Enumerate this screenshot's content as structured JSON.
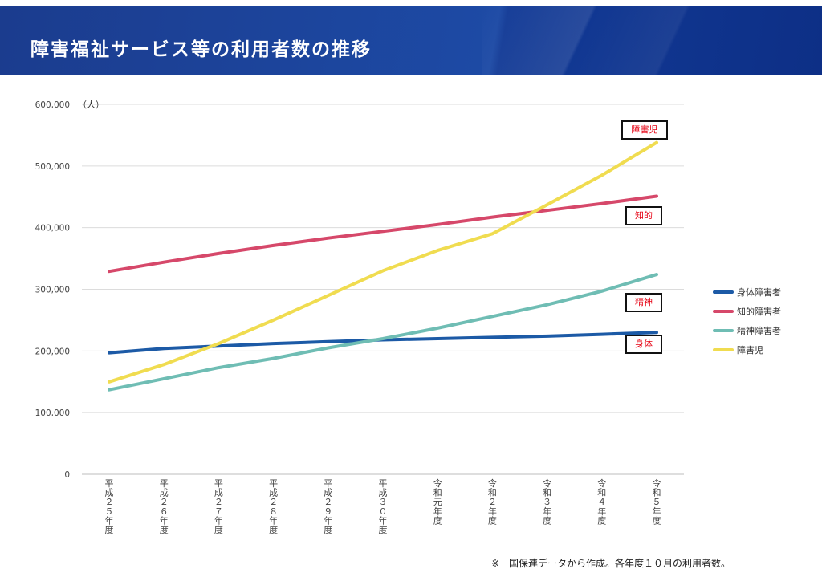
{
  "header": {
    "title": "障害福祉サービス等の利用者数の推移"
  },
  "footnote": "※　国保連データから作成。各年度１０月の利用者数。",
  "chart_data": {
    "type": "line",
    "unit_label": "（人）",
    "categories": [
      "平成25年度",
      "平成26年度",
      "平成27年度",
      "平成28年度",
      "平成29年度",
      "平成30年度",
      "令和元年度",
      "令和2年度",
      "令和3年度",
      "令和4年度",
      "令和5年度"
    ],
    "category_labels": [
      "平成２５年度",
      "平成２６年度",
      "平成２７年度",
      "平成２８年度",
      "平成２９年度",
      "平成３０年度",
      "令和元年度",
      "令和２年度",
      "令和３年度",
      "令和４年度",
      "令和５年度"
    ],
    "ylim": [
      0,
      600000
    ],
    "yticks": [
      "0",
      "100,000",
      "200,000",
      "300,000",
      "400,000",
      "500,000",
      "600,000"
    ],
    "grid": true,
    "legend_position": "right",
    "series": [
      {
        "name": "身体障害者",
        "color": "#1c5aa6",
        "callout": "身体",
        "values": [
          197000,
          204000,
          208000,
          212000,
          215000,
          218000,
          220000,
          222000,
          224000,
          227000,
          230000
        ]
      },
      {
        "name": "知的障害者",
        "color": "#d6486a",
        "callout": "知的",
        "values": [
          329000,
          344000,
          358000,
          371000,
          383000,
          394000,
          405000,
          417000,
          428000,
          439000,
          451000
        ]
      },
      {
        "name": "精神障害者",
        "color": "#6fbdb4",
        "callout": "精神",
        "values": [
          137000,
          155000,
          173000,
          188000,
          205000,
          220000,
          237000,
          256000,
          275000,
          297000,
          324000
        ]
      },
      {
        "name": "障害児",
        "color": "#f0dc50",
        "callout": "障害児",
        "values": [
          150000,
          178000,
          212000,
          250000,
          290000,
          330000,
          363000,
          390000,
          437000,
          485000,
          538000
        ]
      }
    ]
  }
}
